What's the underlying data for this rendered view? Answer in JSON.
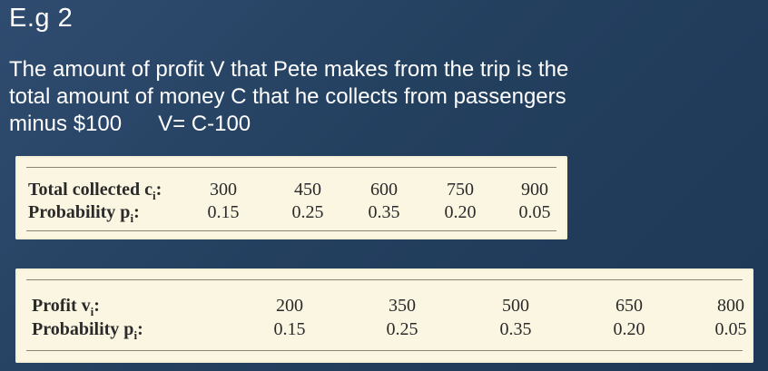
{
  "heading": "E.g 2",
  "description": {
    "line1": "The amount of profit V that Pete makes from the trip is the",
    "line2": "total amount of money C that he collects from passengers",
    "line3": "minus $100",
    "equation": "V= C-100"
  },
  "table1": {
    "row1_label": "Total collected c",
    "row1_sub": "i",
    "row1_values": [
      "300",
      "450",
      "600",
      "750",
      "900"
    ],
    "row2_label": "Probability p",
    "row2_sub": "i",
    "row2_values": [
      "0.15",
      "0.25",
      "0.35",
      "0.20",
      "0.05"
    ]
  },
  "table2": {
    "row1_label": "Profit v",
    "row1_sub": "i",
    "row1_values": [
      "200",
      "350",
      "500",
      "650",
      "800"
    ],
    "row2_label": "Probability p",
    "row2_sub": "i",
    "row2_values": [
      "0.15",
      "0.25",
      "0.35",
      "0.20",
      "0.05"
    ]
  },
  "colors": {
    "background": "#24405f",
    "panel": "#fbf6e2",
    "text": "#ffffff"
  }
}
